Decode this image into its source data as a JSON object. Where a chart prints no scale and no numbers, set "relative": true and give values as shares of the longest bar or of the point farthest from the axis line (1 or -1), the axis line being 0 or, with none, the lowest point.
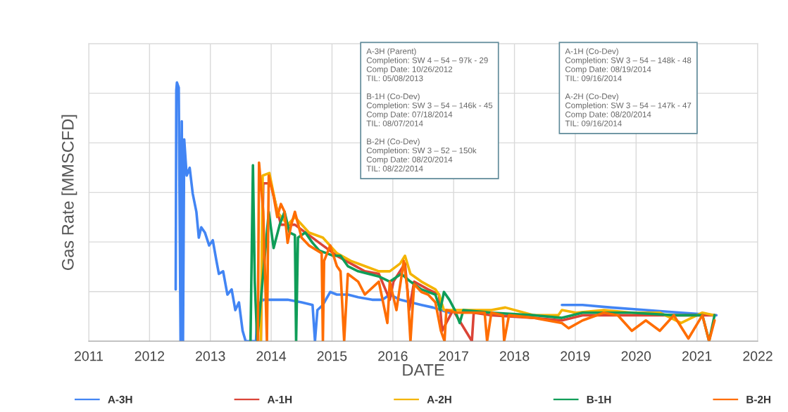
{
  "chart_data": {
    "type": "line",
    "xlabel": "DATE",
    "ylabel": "Gas Rate [MMSCFD]",
    "xlim": [
      2011,
      2022
    ],
    "xticks": [
      2011,
      2012,
      2013,
      2014,
      2015,
      2016,
      2017,
      2018,
      2019,
      2020,
      2021,
      2022
    ],
    "relative": true,
    "grid": true,
    "legend": "bottom",
    "marker": "none",
    "line_style": "solid",
    "annotations": [
      "A-3H (Parent)\nCompletion: SW 4 – 54 – 97k - 29\nComp Date: 10/26/2012\nTIL: 05/08/2013\n\nB-1H (Co-Dev)\nCompletion: SW 3 – 54 – 146k - 45\nComp Date: 07/18/2014\nTIL: 08/07/2014\n\nB-2H (Co-Dev)\nCompletion: SW 3 – 52 – 150k\nComp Date: 08/20/2014\nTIL: 08/22/2014",
      "A-1H (Co-Dev)\nCompletion: SW 3 – 54 – 148k - 48\nComp Date: 08/19/2014\nTIL: 09/16/2014\n\nA-2H (Co-Dev)\nCompletion: SW 3 – 54 – 147k - 47\nComp Date: 08/20/2014\nTIL: 09/16/2014"
    ],
    "series": [
      {
        "name": "A-3H",
        "color": "#4285f4",
        "x": [
          2012.43,
          2012.44,
          2012.45,
          2012.48,
          2012.51,
          2012.53,
          2012.55,
          2012.57,
          2012.61,
          2012.66,
          2012.71,
          2012.77,
          2012.81,
          2012.85,
          2012.91,
          2012.98,
          2013.04,
          2013.1,
          2013.14,
          2013.21,
          2013.28,
          2013.35,
          2013.41,
          2013.47,
          2013.53,
          2013.58,
          2013.75,
          2013.78,
          2013.87,
          2014.04,
          2014.27,
          2014.5,
          2014.68,
          2014.72,
          2014.76,
          2014.85,
          2014.97,
          2015.08,
          2015.26,
          2015.43,
          2015.66,
          2015.83,
          2015.95,
          2016.12,
          2016.47,
          2016.66,
          2016.93,
          2017.39,
          2017.85,
          2018.32,
          2018.72,
          2018.78,
          2019.12,
          2019.59,
          2020.16,
          2020.74,
          2021.32
        ],
        "values": [
          0.2,
          0.97,
          1.0,
          0.98,
          0,
          0.85,
          0,
          0.78,
          0.64,
          0.67,
          0.57,
          0.5,
          0.4,
          0.44,
          0.42,
          0.37,
          0.39,
          0.31,
          0.26,
          0.27,
          0.18,
          0.2,
          0.12,
          0.15,
          0.04,
          0,
          0,
          0.14,
          0.16,
          0.16,
          0.16,
          0.15,
          0.14,
          0,
          0.12,
          0.14,
          0.19,
          0.18,
          0.18,
          0.17,
          0.16,
          0.16,
          0.18,
          0.16,
          0.14,
          0.13,
          0.11,
          null,
          null,
          null,
          null,
          0.14,
          0.14,
          0.13,
          0.12,
          0.11,
          0.1
        ]
      },
      {
        "name": "A-1H",
        "color": "#db4437",
        "x": [
          2013.83,
          2013.87,
          2013.99,
          2014.16,
          2014.39,
          2014.62,
          2014.85,
          2015.08,
          2015.31,
          2015.54,
          2015.77,
          2015.95,
          2016.01,
          2016.2,
          2016.27,
          2016.35,
          2016.58,
          2016.76,
          2016.81,
          2016.99,
          2017.3,
          2017.33,
          2017.62,
          2018.32,
          2018.78,
          2019.12,
          2019.93,
          2020.62,
          2021.29
        ],
        "values": [
          0,
          0.61,
          0.61,
          0.45,
          0.45,
          0.41,
          0.37,
          0.33,
          0.3,
          0.27,
          0.26,
          0.16,
          0.23,
          0.3,
          0.12,
          0.23,
          0.2,
          0.18,
          0.04,
          0.12,
          0,
          0.11,
          0.1,
          0.09,
          0.08,
          0.1,
          0.1,
          0.1,
          0.1
        ]
      },
      {
        "name": "A-2H",
        "color": "#f4b400",
        "x": [
          2013.83,
          2013.86,
          2013.97,
          2014.1,
          2014.27,
          2014.39,
          2014.62,
          2014.85,
          2015.08,
          2015.31,
          2015.54,
          2015.77,
          2015.95,
          2016.12,
          2016.2,
          2016.29,
          2016.47,
          2016.7,
          2016.76,
          2016.84,
          2017.16,
          2017.62,
          2017.85,
          2018.32,
          2018.72,
          2018.78,
          2019.01,
          2019.47,
          2019.93,
          2020.39,
          2020.74,
          2021.09,
          2021.29
        ],
        "values": [
          0,
          0.64,
          0.65,
          0.5,
          0.45,
          0.48,
          0.42,
          0.4,
          0.34,
          0.31,
          0.29,
          0.27,
          0.27,
          0.3,
          0.33,
          0.26,
          0.23,
          0.2,
          0.18,
          0.12,
          0.12,
          0.12,
          0.13,
          0.1,
          0.1,
          0.12,
          0.11,
          0.12,
          0.11,
          0.11,
          0.07,
          0.11,
          0.1
        ]
      },
      {
        "name": "B-1H",
        "color": "#0f9d58",
        "x": [
          2013.66,
          2013.7,
          2013.73,
          2013.77,
          2013.96,
          2014.04,
          2014.14,
          2014.22,
          2014.3,
          2014.39,
          2014.41,
          2014.44,
          2014.56,
          2014.68,
          2014.79,
          2014.91,
          2015.02,
          2015.14,
          2015.26,
          2015.43,
          2015.6,
          2015.77,
          2015.95,
          2016.14,
          2016.29,
          2016.47,
          2016.7,
          2016.78,
          2016.84,
          2016.93,
          2017.02,
          2017.1,
          2017.16,
          2017.62,
          2018.32,
          2018.78,
          2019.12,
          2019.93,
          2020.62,
          2021.09,
          2021.2,
          2021.29
        ],
        "values": [
          0,
          0.68,
          0.23,
          0,
          0.5,
          0.36,
          0.45,
          0.5,
          0.42,
          0.41,
          0,
          0.4,
          0.42,
          0.38,
          0.35,
          0.34,
          0.33,
          0.33,
          0.29,
          0.27,
          0.26,
          0.25,
          0.23,
          0.26,
          0.23,
          0.2,
          0.18,
          0.12,
          0.19,
          0.16,
          0.12,
          0.07,
          0.12,
          0.11,
          0.1,
          0.09,
          0.11,
          0.11,
          0.1,
          0.1,
          0,
          0.1
        ]
      },
      {
        "name": "B-2H",
        "color": "#ff6d01",
        "x": [
          2013.78,
          2013.8,
          2013.87,
          2013.93,
          2013.96,
          2014.04,
          2014.1,
          2014.16,
          2014.22,
          2014.27,
          2014.33,
          2014.39,
          2014.5,
          2014.62,
          2014.83,
          2014.85,
          2014.87,
          2014.97,
          2015.08,
          2015.14,
          2015.2,
          2015.26,
          2015.43,
          2015.54,
          2015.77,
          2015.91,
          2015.95,
          2016.06,
          2016.18,
          2016.24,
          2016.29,
          2016.35,
          2016.47,
          2016.58,
          2016.7,
          2016.79,
          2016.85,
          2016.88,
          2017.05,
          2017.51,
          2017.55,
          2017.62,
          2017.81,
          2017.83,
          2017.91,
          2018.32,
          2018.78,
          2018.89,
          2019.12,
          2019.47,
          2019.7,
          2019.93,
          2020.16,
          2020.39,
          2020.62,
          2020.86,
          2021.09,
          2021.2,
          2021.29
        ],
        "values": [
          0,
          0.69,
          0.5,
          0,
          0.64,
          0.56,
          0.48,
          0.53,
          0.5,
          0.38,
          0.45,
          0.5,
          0.4,
          0.37,
          0.34,
          0,
          0.31,
          0.37,
          0.29,
          0.27,
          0,
          0.26,
          0.23,
          0.18,
          0.23,
          0.07,
          0.23,
          0.12,
          0.31,
          0.2,
          0,
          0.22,
          0.19,
          0.18,
          0.15,
          0.04,
          0,
          0.12,
          0.11,
          0.11,
          0,
          0.11,
          0.1,
          0,
          0.1,
          0.09,
          0.07,
          0.05,
          0.08,
          0.11,
          0.1,
          0.04,
          0.08,
          0.04,
          0.1,
          0.01,
          0.1,
          0,
          0.08
        ]
      }
    ]
  }
}
